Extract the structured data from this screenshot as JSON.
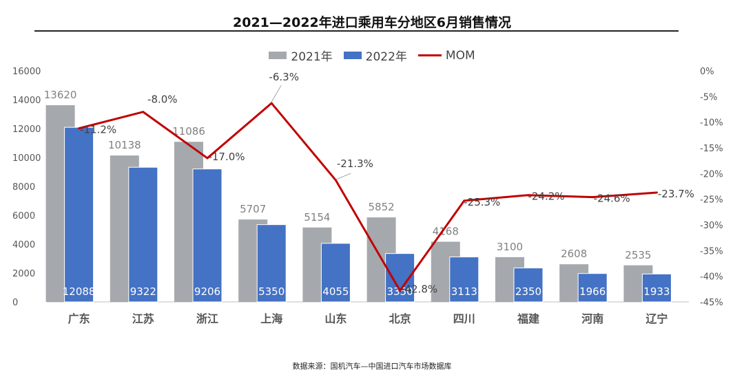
{
  "chart_data": {
    "type": "bar",
    "title": "2021—2022年进口乘用车分地区6月销售情况",
    "categories": [
      "广东",
      "江苏",
      "浙江",
      "上海",
      "山东",
      "北京",
      "四川",
      "福建",
      "河南",
      "辽宁"
    ],
    "series": [
      {
        "name": "2021年",
        "values": [
          13620,
          10138,
          11086,
          5707,
          5154,
          5852,
          4168,
          3100,
          2608,
          2535
        ],
        "color": "#a5a9ad"
      },
      {
        "name": "2022年",
        "values": [
          12088,
          9322,
          9206,
          5350,
          4055,
          3350,
          3113,
          2350,
          1966,
          1933
        ],
        "color": "#4472c4"
      }
    ],
    "line_series": {
      "name": "MOM",
      "values": [
        -11.2,
        -8.0,
        -17.0,
        -6.3,
        -21.3,
        -42.8,
        -25.3,
        -24.2,
        -24.6,
        -23.7
      ],
      "labels": [
        "-11.2%",
        "-8.0%",
        "-17.0%",
        "-6.3%",
        "-21.3%",
        "-42.8%",
        "-25.3%",
        "-24.2%",
        "-24.6%",
        "-23.7%"
      ],
      "color": "#c00000"
    },
    "y_left": {
      "min": 0,
      "max": 16000,
      "ticks": [
        "0",
        "2000",
        "4000",
        "6000",
        "8000",
        "10000",
        "12000",
        "14000",
        "16000"
      ]
    },
    "y_right": {
      "min": -45,
      "max": 0,
      "ticks": [
        "-45%",
        "-40%",
        "-35%",
        "-30%",
        "-25%",
        "-20%",
        "-15%",
        "-10%",
        "-5%",
        "0%"
      ]
    },
    "legend_position": "top-center",
    "grid": false
  },
  "source": "数据来源：国机汽车—中国进口汽车市场数据库"
}
